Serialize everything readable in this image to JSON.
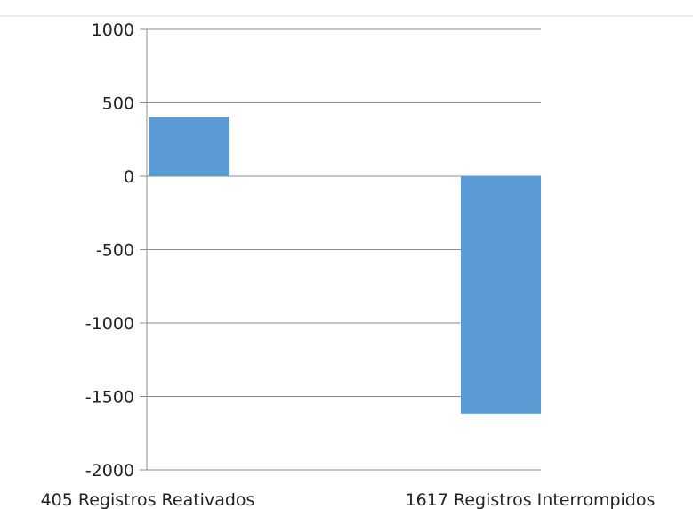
{
  "chart_data": {
    "type": "bar",
    "categories": [
      "405 Registros Reativados",
      "1617 Registros Interrompidos"
    ],
    "values": [
      405,
      -1617
    ],
    "ylim": [
      -2000,
      1000
    ],
    "yticks": [
      1000,
      500,
      0,
      -500,
      -1000,
      -1500,
      -2000
    ],
    "ytick_labels": [
      "1000",
      "500",
      "0",
      "-500",
      "-1000",
      "-1500",
      "-2000"
    ],
    "grid": true,
    "legend": "none",
    "colors": {
      "bar": "#5b9bd5",
      "grid": "#8c8c8c",
      "axis": "#8c8c8c"
    }
  }
}
